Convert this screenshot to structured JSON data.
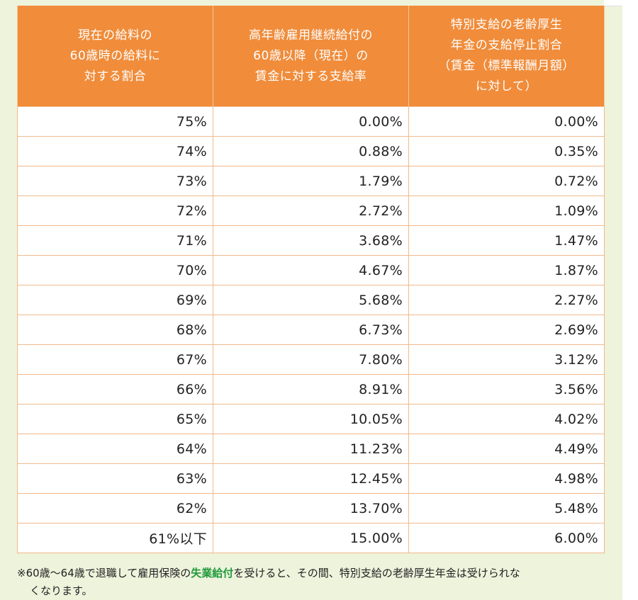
{
  "table": {
    "headers": [
      [
        "現在の給料の",
        "60歳時の給料に",
        "対する割合"
      ],
      [
        "高年齢雇用継続給付の",
        "60歳以降（現在）の",
        "賃金に対する支給率"
      ],
      [
        "特別支給の老齢厚生",
        "年金の支給停止割合",
        "（賃金（標準報酬月額）",
        "に対して）"
      ]
    ],
    "rows": [
      [
        "75%",
        "0.00%",
        "0.00%"
      ],
      [
        "74%",
        "0.88%",
        "0.35%"
      ],
      [
        "73%",
        "1.79%",
        "0.72%"
      ],
      [
        "72%",
        "2.72%",
        "1.09%"
      ],
      [
        "71%",
        "3.68%",
        "1.47%"
      ],
      [
        "70%",
        "4.67%",
        "1.87%"
      ],
      [
        "69%",
        "5.68%",
        "2.27%"
      ],
      [
        "68%",
        "6.73%",
        "2.69%"
      ],
      [
        "67%",
        "7.80%",
        "3.12%"
      ],
      [
        "66%",
        "8.91%",
        "3.56%"
      ],
      [
        "65%",
        "10.05%",
        "4.02%"
      ],
      [
        "64%",
        "11.23%",
        "4.49%"
      ],
      [
        "63%",
        "12.45%",
        "4.98%"
      ],
      [
        "62%",
        "13.70%",
        "5.48%"
      ],
      [
        "61%以下",
        "15.00%",
        "6.00%"
      ]
    ]
  },
  "note": {
    "prefix": "※60歳～64歳で退職して雇用保険の",
    "link": "失業給付",
    "suffix": "を受けると、その間、特別支給の老齢厚生年金は受けられな",
    "line2": "くなります。"
  },
  "colors": {
    "header_bg": "#f08c3a",
    "border": "#f0b98a",
    "panel_bg": "#eef3dc",
    "link": "#1f9a3a"
  }
}
